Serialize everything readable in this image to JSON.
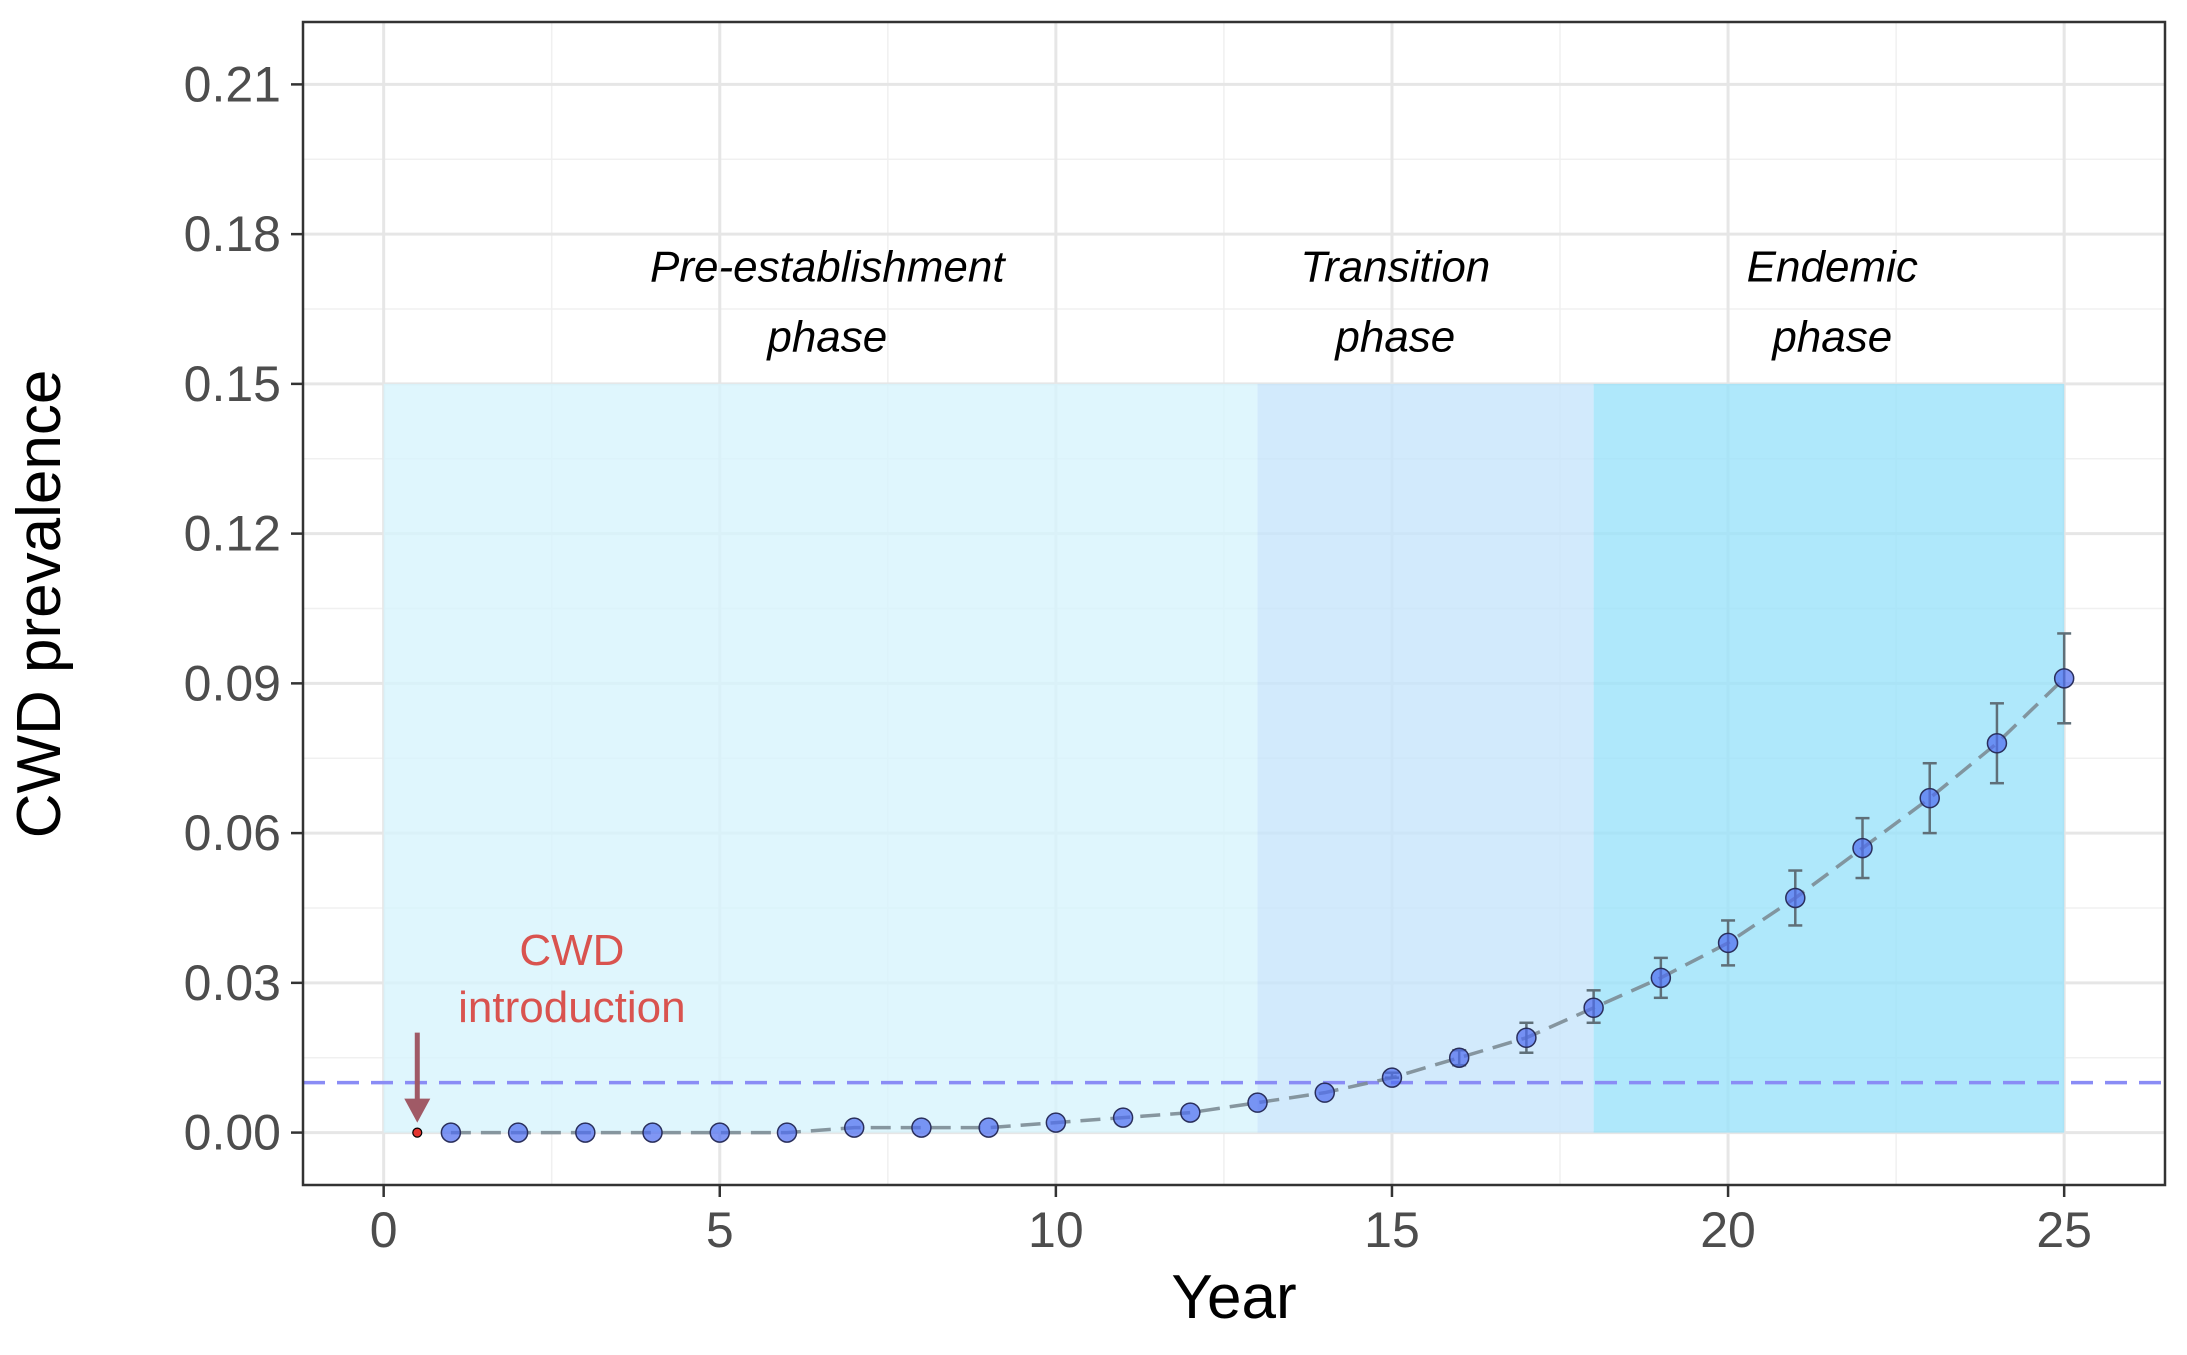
{
  "chart_data": {
    "type": "scatter",
    "xlabel": "Year",
    "ylabel": "CWD prevalence",
    "xlim": [
      -1.2,
      26.5
    ],
    "ylim": [
      -0.0105,
      0.2225
    ],
    "x_ticks": [
      0,
      5,
      10,
      15,
      20,
      25
    ],
    "x_minor_ticks": [
      2.5,
      7.5,
      12.5,
      17.5,
      22.5
    ],
    "y_ticks": [
      0.0,
      0.03,
      0.06,
      0.09,
      0.12,
      0.15,
      0.18,
      0.21
    ],
    "y_tick_labels": [
      "0.00",
      "0.03",
      "0.06",
      "0.09",
      "0.12",
      "0.15",
      "0.18",
      "0.21"
    ],
    "y_minor_ticks": [
      0.015,
      0.045,
      0.075,
      0.105,
      0.135,
      0.165,
      0.195
    ],
    "grid": true,
    "threshold_line": {
      "y": 0.01,
      "color": "#8a8cf5",
      "style": "dashed"
    },
    "phases": [
      {
        "label_line1": "Pre-establishment",
        "label_line2": "phase",
        "x_start": 0,
        "x_end": 13,
        "y_top": 0.15,
        "color": "#d6f3fd",
        "label_x": 6.6
      },
      {
        "label_line1": "Transition",
        "label_line2": "phase",
        "x_start": 13,
        "x_end": 18,
        "y_top": 0.15,
        "color": "#c5e4fb",
        "label_x": 15.05
      },
      {
        "label_line1": "Endemic",
        "label_line2": "phase",
        "x_start": 18,
        "x_end": 25,
        "y_top": 0.15,
        "color": "#99e2fa",
        "label_x": 21.55
      }
    ],
    "introduction": {
      "label_line1": "CWD",
      "label_line2": "introduction",
      "x": 0.5,
      "y": 0.0,
      "color": "#d9534f",
      "arrow_color": "#a05a66"
    },
    "series": [
      {
        "x": [
          1,
          2,
          3,
          4,
          5,
          6,
          7,
          8,
          9,
          10,
          11,
          12,
          13,
          14,
          15,
          16,
          17,
          18,
          19,
          20,
          21,
          22,
          23,
          24,
          25
        ],
        "y": [
          0.0,
          0.0,
          0.0,
          0.0,
          0.0,
          0.0,
          0.001,
          0.001,
          0.001,
          0.002,
          0.003,
          0.004,
          0.006,
          0.008,
          0.011,
          0.015,
          0.019,
          0.025,
          0.031,
          0.038,
          0.047,
          0.057,
          0.067,
          0.078,
          0.091
        ],
        "err_low": [
          0.0,
          0.0,
          0.0,
          0.0,
          0.0,
          0.0,
          0.0,
          0.0,
          0.0,
          0.0,
          0.0,
          0.0,
          0.0,
          0.0,
          0.011,
          0.0135,
          0.016,
          0.022,
          0.027,
          0.0335,
          0.0415,
          0.051,
          0.06,
          0.07,
          0.082
        ],
        "err_high": [
          0.0,
          0.0,
          0.0,
          0.0,
          0.0,
          0.0,
          0.0,
          0.0,
          0.0,
          0.0,
          0.0,
          0.0,
          0.0,
          0.0,
          0.012,
          0.0165,
          0.022,
          0.0285,
          0.035,
          0.0425,
          0.0525,
          0.063,
          0.074,
          0.086,
          0.1
        ],
        "line_color": "#7c8c95",
        "point_color": "#4f6ef0"
      }
    ]
  }
}
